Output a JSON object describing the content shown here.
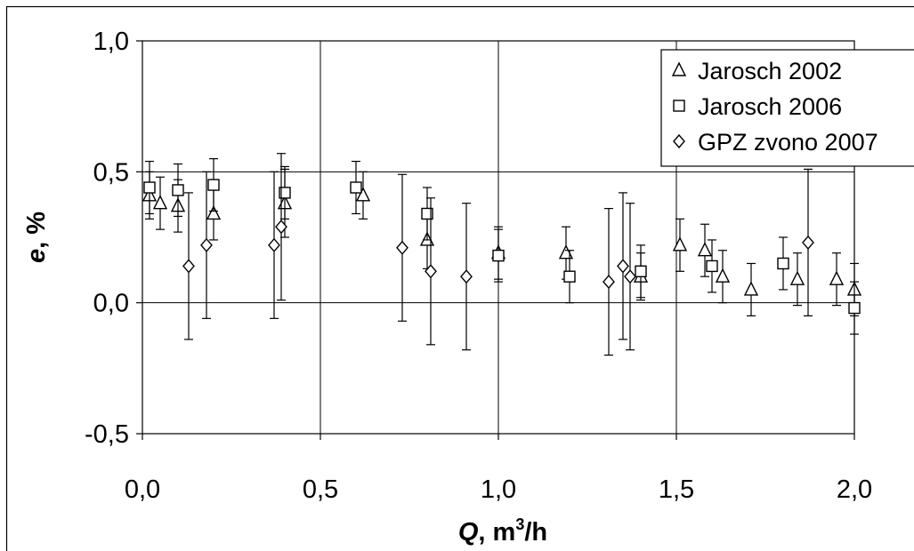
{
  "chart_data": {
    "type": "scatter",
    "title": "",
    "xlabel": {
      "var": "Q",
      "unit_prefix": ", m",
      "unit_sup": "3",
      "unit_suffix": "/h"
    },
    "ylabel": {
      "var": "e",
      "unit": ", %"
    },
    "xlim": [
      0.0,
      2.0
    ],
    "ylim": [
      -0.5,
      1.0
    ],
    "x_ticks": [
      0.0,
      0.5,
      1.0,
      1.5,
      2.0
    ],
    "x_tick_labels": [
      "0,0",
      "0,5",
      "1,0",
      "1,5",
      "2,0"
    ],
    "y_ticks": [
      -0.5,
      0.0,
      0.5,
      1.0
    ],
    "y_tick_labels": [
      "-0,5",
      "0,0",
      "0,5",
      "1,0"
    ],
    "grid": true,
    "legend_position": "top-right",
    "series": [
      {
        "name": "Jarosch 2002",
        "marker": "triangle",
        "points": [
          {
            "x": 0.02,
            "y": 0.41,
            "err": 0.09
          },
          {
            "x": 0.05,
            "y": 0.38,
            "err": 0.1
          },
          {
            "x": 0.1,
            "y": 0.37,
            "err": 0.1
          },
          {
            "x": 0.2,
            "y": 0.34,
            "err": 0.1
          },
          {
            "x": 0.4,
            "y": 0.38,
            "err": 0.13
          },
          {
            "x": 0.62,
            "y": 0.41,
            "err": 0.09
          },
          {
            "x": 0.8,
            "y": 0.24,
            "err": 0.11
          },
          {
            "x": 1.0,
            "y": 0.19,
            "err": 0.1
          },
          {
            "x": 1.19,
            "y": 0.19,
            "err": 0.1
          },
          {
            "x": 1.4,
            "y": 0.1,
            "err": 0.09
          },
          {
            "x": 1.51,
            "y": 0.22,
            "err": 0.1
          },
          {
            "x": 1.58,
            "y": 0.2,
            "err": 0.1
          },
          {
            "x": 1.63,
            "y": 0.1,
            "err": 0.1
          },
          {
            "x": 1.71,
            "y": 0.05,
            "err": 0.1
          },
          {
            "x": 1.84,
            "y": 0.09,
            "err": 0.1
          },
          {
            "x": 1.95,
            "y": 0.09,
            "err": 0.1
          },
          {
            "x": 2.0,
            "y": 0.05,
            "err": 0.1
          }
        ]
      },
      {
        "name": "Jarosch 2006",
        "marker": "square",
        "points": [
          {
            "x": 0.02,
            "y": 0.44,
            "err": 0.1
          },
          {
            "x": 0.1,
            "y": 0.43,
            "err": 0.1
          },
          {
            "x": 0.2,
            "y": 0.45,
            "err": 0.1
          },
          {
            "x": 0.4,
            "y": 0.42,
            "err": 0.1
          },
          {
            "x": 0.6,
            "y": 0.44,
            "err": 0.1
          },
          {
            "x": 0.8,
            "y": 0.34,
            "err": 0.1
          },
          {
            "x": 1.0,
            "y": 0.18,
            "err": 0.1
          },
          {
            "x": 1.2,
            "y": 0.1,
            "err": 0.1
          },
          {
            "x": 1.4,
            "y": 0.12,
            "err": 0.1
          },
          {
            "x": 1.6,
            "y": 0.14,
            "err": 0.1
          },
          {
            "x": 1.8,
            "y": 0.15,
            "err": 0.1
          },
          {
            "x": 2.0,
            "y": -0.02,
            "err": 0.1
          }
        ]
      },
      {
        "name": "GPZ zvono 2007",
        "marker": "diamond",
        "points": [
          {
            "x": 0.13,
            "y": 0.14,
            "err": 0.28
          },
          {
            "x": 0.18,
            "y": 0.22,
            "err": 0.28
          },
          {
            "x": 0.37,
            "y": 0.22,
            "err": 0.28
          },
          {
            "x": 0.39,
            "y": 0.29,
            "err": 0.28
          },
          {
            "x": 0.73,
            "y": 0.21,
            "err": 0.28
          },
          {
            "x": 0.81,
            "y": 0.12,
            "err": 0.28
          },
          {
            "x": 0.91,
            "y": 0.1,
            "err": 0.28
          },
          {
            "x": 1.31,
            "y": 0.08,
            "err": 0.28
          },
          {
            "x": 1.35,
            "y": 0.14,
            "err": 0.28
          },
          {
            "x": 1.37,
            "y": 0.1,
            "err": 0.28
          },
          {
            "x": 1.87,
            "y": 0.23,
            "err": 0.28
          }
        ]
      }
    ]
  }
}
